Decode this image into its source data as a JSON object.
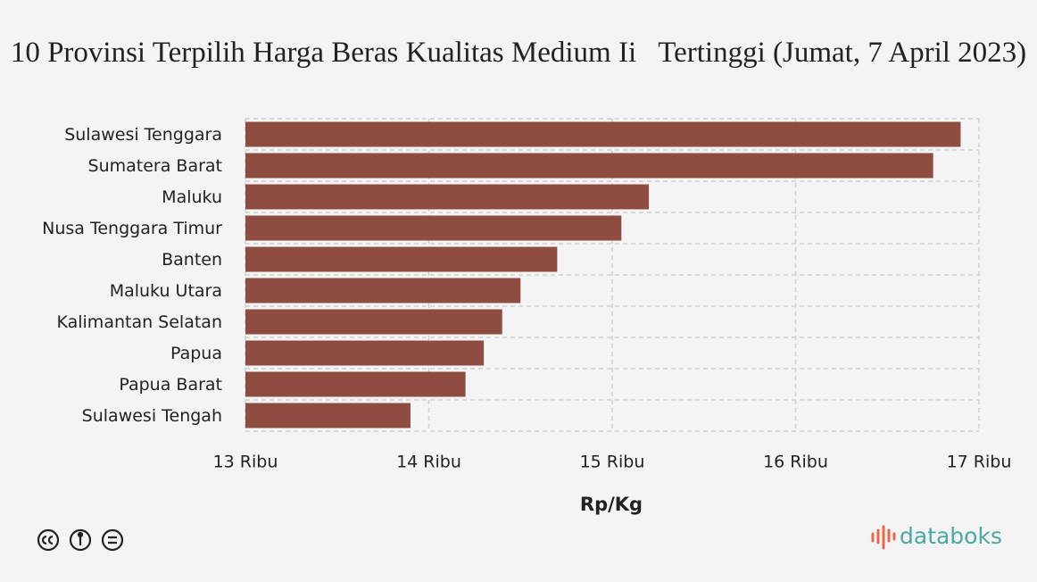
{
  "chart_data": {
    "type": "bar",
    "orientation": "horizontal",
    "title": "10 Provinsi Terpilih Harga Beras Kualitas Medium Ii   Tertinggi (Jumat, 7 April 2023)",
    "x_label": "Rp/Kg",
    "categories": [
      "Sulawesi Tenggara",
      "Sumatera Barat",
      "Maluku",
      "Nusa Tenggara Timur",
      "Banten",
      "Maluku Utara",
      "Kalimantan Selatan",
      "Papua",
      "Papua Barat",
      "Sulawesi Tengah"
    ],
    "values": [
      16900,
      16750,
      15200,
      15050,
      14700,
      14500,
      14400,
      14300,
      14200,
      13900
    ],
    "color": "#8f4c40",
    "xlim": [
      13000,
      17000
    ],
    "xticks": [
      {
        "value": 13000,
        "label": "13 Ribu"
      },
      {
        "value": 14000,
        "label": "14 Ribu"
      },
      {
        "value": 15000,
        "label": "15 Ribu"
      },
      {
        "value": 16000,
        "label": "16 Ribu"
      },
      {
        "value": 17000,
        "label": "17 Ribu"
      }
    ],
    "grid": true
  },
  "brand": "databoks"
}
